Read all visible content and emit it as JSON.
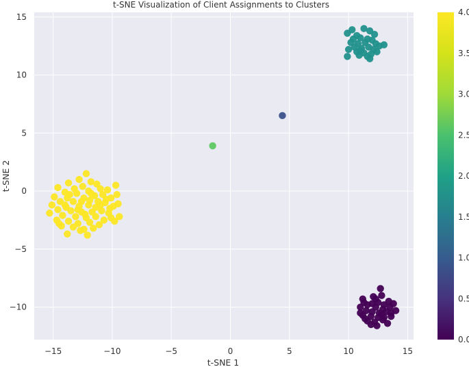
{
  "chart_data": {
    "type": "scatter",
    "title": "t-SNE Visualization of Client Assignments to Clusters",
    "xlabel": "t-SNE 1",
    "ylabel": "t-SNE 2",
    "xlim": [
      -16.6,
      15.5
    ],
    "ylim": [
      -12.8,
      15.4
    ],
    "xticks": [
      -15,
      -10,
      -5,
      0,
      5,
      10,
      15
    ],
    "yticks": [
      -10,
      -5,
      0,
      5,
      10,
      15
    ],
    "grid": true,
    "colormap": "viridis",
    "colorbar": {
      "range": [
        0.0,
        4.0
      ],
      "ticks": [
        "0.0",
        "0.5",
        "1.0",
        "1.5",
        "2.0",
        "2.5",
        "3.0",
        "3.5",
        "4.0"
      ]
    },
    "series": [
      {
        "cluster": 0,
        "color": "#440154",
        "points": [
          [
            12.7,
            -8.4
          ],
          [
            12.1,
            -9.1
          ],
          [
            12.8,
            -9.0
          ],
          [
            11.2,
            -9.3
          ],
          [
            13.4,
            -9.5
          ],
          [
            12.0,
            -9.7
          ],
          [
            12.5,
            -9.6
          ],
          [
            11.6,
            -9.8
          ],
          [
            13.0,
            -9.8
          ],
          [
            13.8,
            -9.7
          ],
          [
            11.0,
            -10.0
          ],
          [
            12.3,
            -10.0
          ],
          [
            12.9,
            -10.2
          ],
          [
            13.5,
            -10.0
          ],
          [
            11.5,
            -10.3
          ],
          [
            12.0,
            -10.4
          ],
          [
            12.6,
            -10.5
          ],
          [
            13.2,
            -10.4
          ],
          [
            14.0,
            -10.3
          ],
          [
            11.2,
            -10.7
          ],
          [
            11.9,
            -10.8
          ],
          [
            12.5,
            -10.9
          ],
          [
            13.0,
            -10.9
          ],
          [
            13.6,
            -10.8
          ],
          [
            11.6,
            -11.2
          ],
          [
            12.2,
            -11.3
          ],
          [
            12.9,
            -11.1
          ],
          [
            12.4,
            -11.6
          ],
          [
            11.9,
            -11.5
          ],
          [
            13.3,
            -11.4
          ],
          [
            11.3,
            -9.6
          ],
          [
            12.3,
            -9.3
          ],
          [
            13.6,
            -10.5
          ],
          [
            11.0,
            -10.5
          ],
          [
            12.8,
            -10.6
          ],
          [
            11.4,
            -11.0
          ]
        ]
      },
      {
        "cluster": 1,
        "color": "#3b528b",
        "points": [
          [
            4.4,
            6.5
          ]
        ]
      },
      {
        "cluster": 2,
        "color": "#21918c",
        "points": [
          [
            11.3,
            14.0
          ],
          [
            10.3,
            13.9
          ],
          [
            11.8,
            13.8
          ],
          [
            9.9,
            13.6
          ],
          [
            10.7,
            13.4
          ],
          [
            12.2,
            13.5
          ],
          [
            10.4,
            13.1
          ],
          [
            11.0,
            13.2
          ],
          [
            11.6,
            13.1
          ],
          [
            12.0,
            13.0
          ],
          [
            10.2,
            12.8
          ],
          [
            10.8,
            12.7
          ],
          [
            11.4,
            12.8
          ],
          [
            12.3,
            12.7
          ],
          [
            13.0,
            12.6
          ],
          [
            10.5,
            12.4
          ],
          [
            11.1,
            12.3
          ],
          [
            11.7,
            12.4
          ],
          [
            12.1,
            12.2
          ],
          [
            10.0,
            12.2
          ],
          [
            10.7,
            12.0
          ],
          [
            11.3,
            11.9
          ],
          [
            11.9,
            11.8
          ],
          [
            12.4,
            12.0
          ],
          [
            10.9,
            11.7
          ],
          [
            11.6,
            11.6
          ],
          [
            9.9,
            11.6
          ],
          [
            11.8,
            11.4
          ],
          [
            11.0,
            12.1
          ],
          [
            12.6,
            12.5
          ]
        ]
      },
      {
        "cluster": 3,
        "color": "#5ec962",
        "points": [
          [
            -1.5,
            3.9
          ]
        ]
      },
      {
        "cluster": 4,
        "color": "#fde725",
        "points": [
          [
            -12.2,
            1.5
          ],
          [
            -12.8,
            1.0
          ],
          [
            -11.8,
            0.8
          ],
          [
            -13.7,
            0.7
          ],
          [
            -11.3,
            0.6
          ],
          [
            -9.7,
            0.5
          ],
          [
            -14.6,
            0.3
          ],
          [
            -12.5,
            0.4
          ],
          [
            -13.2,
            0.2
          ],
          [
            -11.0,
            0.2
          ],
          [
            -10.4,
            0.1
          ],
          [
            -14.0,
            -0.1
          ],
          [
            -12.0,
            0.0
          ],
          [
            -13.0,
            -0.2
          ],
          [
            -10.8,
            -0.3
          ],
          [
            -11.5,
            -0.4
          ],
          [
            -9.6,
            -0.3
          ],
          [
            -14.9,
            -0.5
          ],
          [
            -13.8,
            -0.6
          ],
          [
            -12.4,
            -0.6
          ],
          [
            -10.1,
            -0.6
          ],
          [
            -14.4,
            -0.9
          ],
          [
            -13.3,
            -0.9
          ],
          [
            -11.9,
            -0.8
          ],
          [
            -11.2,
            -0.9
          ],
          [
            -10.6,
            -1.0
          ],
          [
            -15.1,
            -1.2
          ],
          [
            -14.0,
            -1.2
          ],
          [
            -12.8,
            -1.3
          ],
          [
            -12.0,
            -1.2
          ],
          [
            -11.4,
            -1.4
          ],
          [
            -9.9,
            -1.3
          ],
          [
            -9.5,
            -1.1
          ],
          [
            -14.6,
            -1.6
          ],
          [
            -13.5,
            -1.7
          ],
          [
            -12.6,
            -1.8
          ],
          [
            -11.7,
            -1.8
          ],
          [
            -10.9,
            -1.7
          ],
          [
            -10.3,
            -1.9
          ],
          [
            -15.3,
            -1.9
          ],
          [
            -14.2,
            -2.1
          ],
          [
            -13.1,
            -2.2
          ],
          [
            -12.2,
            -2.3
          ],
          [
            -11.4,
            -2.2
          ],
          [
            -10.1,
            -2.3
          ],
          [
            -14.7,
            -2.5
          ],
          [
            -13.7,
            -2.6
          ],
          [
            -12.9,
            -2.8
          ],
          [
            -11.9,
            -2.7
          ],
          [
            -10.7,
            -2.5
          ],
          [
            -9.8,
            -2.6
          ],
          [
            -9.4,
            -2.2
          ],
          [
            -14.3,
            -3.0
          ],
          [
            -13.3,
            -3.1
          ],
          [
            -12.4,
            -3.3
          ],
          [
            -11.6,
            -3.2
          ],
          [
            -13.8,
            -3.7
          ],
          [
            -12.1,
            -3.8
          ],
          [
            -12.7,
            -3.4
          ],
          [
            -13.9,
            -1.4
          ],
          [
            -12.3,
            -2.0
          ],
          [
            -11.0,
            -1.2
          ],
          [
            -13.6,
            -0.3
          ],
          [
            -11.8,
            -0.2
          ],
          [
            -10.2,
            -1.5
          ],
          [
            -12.9,
            -1.6
          ],
          [
            -14.5,
            -2.8
          ],
          [
            -11.1,
            -2.9
          ],
          [
            -10.5,
            -0.7
          ],
          [
            -12.6,
            -0.9
          ]
        ]
      }
    ]
  }
}
